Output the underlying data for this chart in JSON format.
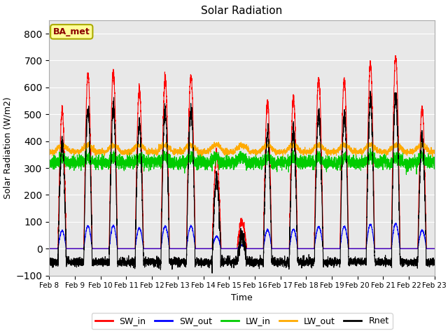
{
  "title": "Solar Radiation",
  "ylabel": "Solar Radiation (W/m2)",
  "xlabel": "Time",
  "ylim": [
    -100,
    850
  ],
  "yticks": [
    -100,
    0,
    100,
    200,
    300,
    400,
    500,
    600,
    700,
    800
  ],
  "date_start": 8,
  "date_end": 23,
  "annotation_text": "BA_met",
  "annotation_color": "#8b0000",
  "annotation_bg": "#ffff99",
  "annotation_edge": "#aaaa00",
  "colors": {
    "SW_in": "#ff0000",
    "SW_out": "#0000ff",
    "LW_in": "#00cc00",
    "LW_out": "#ffaa00",
    "Rnet": "#000000"
  },
  "plot_bg": "#e8e8e8",
  "fig_bg": "#ffffff",
  "n_days": 15,
  "n_per_day": 288,
  "sw_peaks": [
    510,
    650,
    660,
    590,
    640,
    645,
    350,
    100,
    540,
    560,
    630,
    630,
    690,
    715,
    520
  ],
  "lw_in_base": 320,
  "lw_out_base": 360,
  "night_rnet": -50
}
